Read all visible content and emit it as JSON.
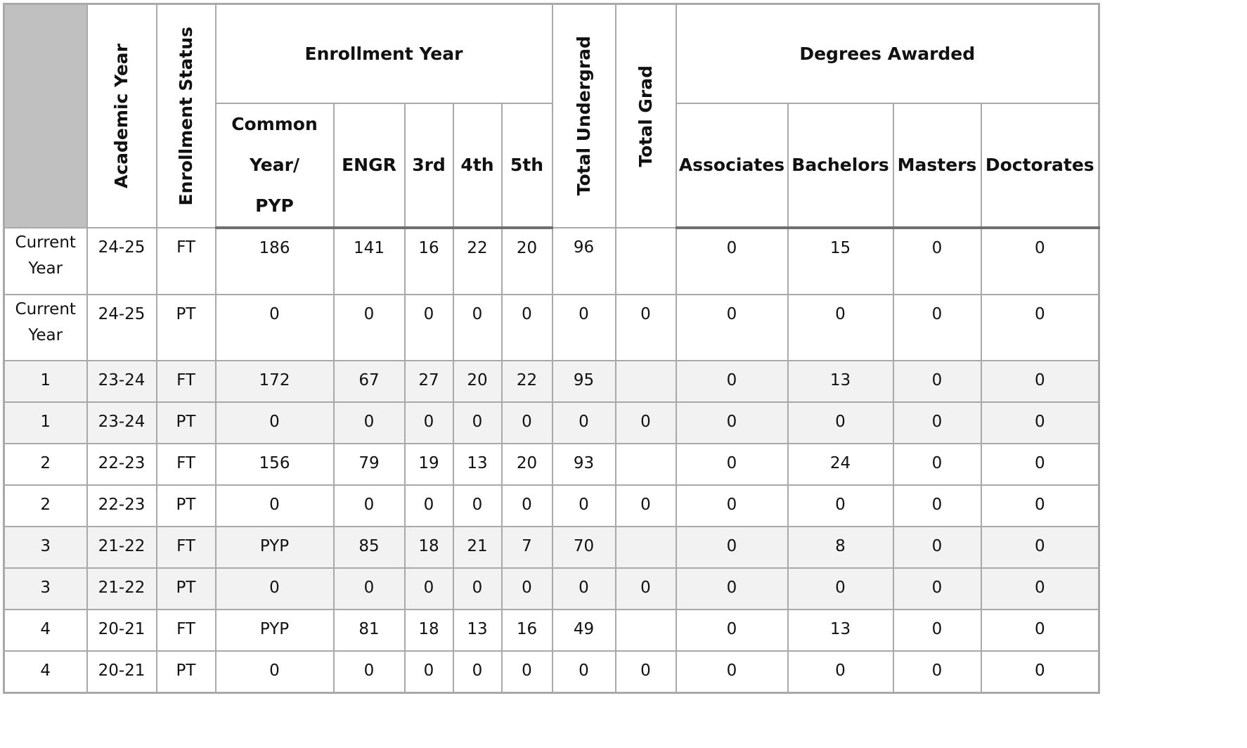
{
  "headers": {
    "academic_year": "Academic Year",
    "enrollment_status": "Enrollment Status",
    "enrollment_year": "Enrollment Year",
    "total_undergrad": "Total Undergrad",
    "total_grad": "Total Grad",
    "degrees_awarded": "Degrees Awarded",
    "common_year": "Common Year/ PYP",
    "engr": "ENGR",
    "third": "3rd",
    "fourth": "4th",
    "fifth": "5th",
    "associates": "Associates",
    "bachelors": "Bachelors",
    "masters": "Masters",
    "doctorates": "Doctorates"
  },
  "rows": [
    {
      "label": "Current Year",
      "year": "24-25",
      "status": "FT",
      "common": "186",
      "engr": "141",
      "third": "16",
      "fourth": "22",
      "fifth": "20",
      "undergrad": "96",
      "grad": "",
      "associates": "0",
      "bachelors": "15",
      "masters": "0",
      "doctorates": "0"
    },
    {
      "label": "Current Year",
      "year": "24-25",
      "status": "PT",
      "common": "0",
      "engr": "0",
      "third": "0",
      "fourth": "0",
      "fifth": "0",
      "undergrad": "0",
      "grad": "0",
      "associates": "0",
      "bachelors": "0",
      "masters": "0",
      "doctorates": "0"
    },
    {
      "label": "1",
      "year": "23-24",
      "status": "FT",
      "common": "172",
      "engr": "67",
      "third": "27",
      "fourth": "20",
      "fifth": "22",
      "undergrad": "95",
      "grad": "",
      "associates": "0",
      "bachelors": "13",
      "masters": "0",
      "doctorates": "0"
    },
    {
      "label": "1",
      "year": "23-24",
      "status": "PT",
      "common": "0",
      "engr": "0",
      "third": "0",
      "fourth": "0",
      "fifth": "0",
      "undergrad": "0",
      "grad": "0",
      "associates": "0",
      "bachelors": "0",
      "masters": "0",
      "doctorates": "0"
    },
    {
      "label": "2",
      "year": "22-23",
      "status": "FT",
      "common": "156",
      "engr": "79",
      "third": "19",
      "fourth": "13",
      "fifth": "20",
      "undergrad": "93",
      "grad": "",
      "associates": "0",
      "bachelors": "24",
      "masters": "0",
      "doctorates": "0"
    },
    {
      "label": "2",
      "year": "22-23",
      "status": "PT",
      "common": "0",
      "engr": "0",
      "third": "0",
      "fourth": "0",
      "fifth": "0",
      "undergrad": "0",
      "grad": "0",
      "associates": "0",
      "bachelors": "0",
      "masters": "0",
      "doctorates": "0"
    },
    {
      "label": "3",
      "year": "21-22",
      "status": "FT",
      "common": "PYP",
      "engr": "85",
      "third": "18",
      "fourth": "21",
      "fifth": "7",
      "undergrad": "70",
      "grad": "",
      "associates": "0",
      "bachelors": "8",
      "masters": "0",
      "doctorates": "0"
    },
    {
      "label": "3",
      "year": "21-22",
      "status": "PT",
      "common": "0",
      "engr": "0",
      "third": "0",
      "fourth": "0",
      "fifth": "0",
      "undergrad": "0",
      "grad": "0",
      "associates": "0",
      "bachelors": "0",
      "masters": "0",
      "doctorates": "0"
    },
    {
      "label": "4",
      "year": "20-21",
      "status": "FT",
      "common": "PYP",
      "engr": "81",
      "third": "18",
      "fourth": "13",
      "fifth": "16",
      "undergrad": "49",
      "grad": "",
      "associates": "0",
      "bachelors": "13",
      "masters": "0",
      "doctorates": "0"
    },
    {
      "label": "4",
      "year": "20-21",
      "status": "PT",
      "common": "0",
      "engr": "0",
      "third": "0",
      "fourth": "0",
      "fifth": "0",
      "undergrad": "0",
      "grad": "0",
      "associates": "0",
      "bachelors": "0",
      "masters": "0",
      "doctorates": "0"
    }
  ],
  "colors": {
    "corner": "#c0c0c0",
    "shaded_row": "#f2f2f2",
    "grid": "#a9a9a9"
  }
}
